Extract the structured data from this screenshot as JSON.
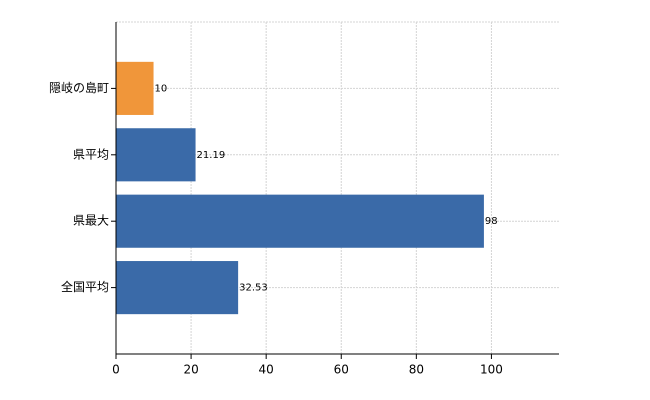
{
  "chart_data": {
    "type": "bar",
    "orientation": "horizontal",
    "categories": [
      "隠岐の島町",
      "県平均",
      "県最大",
      "全国平均"
    ],
    "values": [
      10,
      21.19,
      98,
      32.53
    ],
    "colors": [
      "#f0963a",
      "#3a6aa8",
      "#3a6aa8",
      "#3a6aa8"
    ],
    "xlim": [
      0,
      118
    ],
    "xticks": [
      0,
      20,
      40,
      60,
      80,
      100
    ],
    "grid": true
  }
}
